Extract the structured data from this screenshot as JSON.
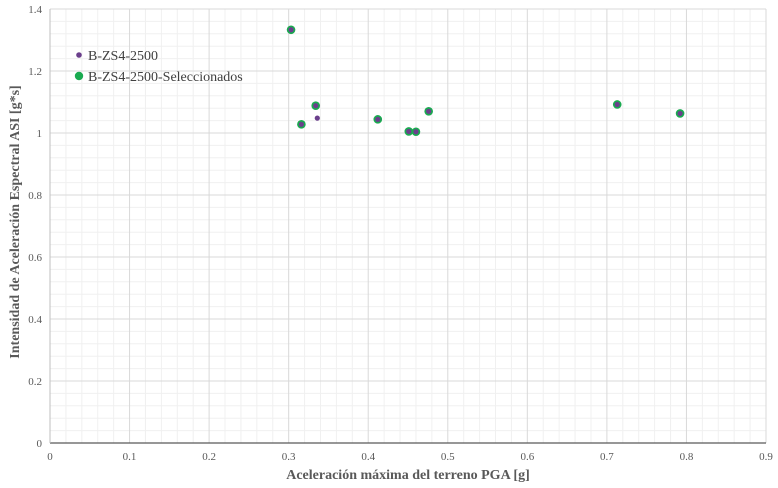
{
  "chart_data": {
    "type": "scatter",
    "title": "",
    "xlabel": "Aceleración máxima del terreno PGA [g]",
    "ylabel": "Intensidad de Aceleración Espectral ASI [g*s]",
    "xlim": [
      0,
      0.9
    ],
    "ylim": [
      0,
      1.4
    ],
    "xticks": [
      "0",
      "0.1",
      "0.2",
      "0.3",
      "0.4",
      "0.5",
      "0.6",
      "0.7",
      "0.8",
      "0.9"
    ],
    "yticks": [
      "0",
      "0.2",
      "0.4",
      "0.6",
      "0.8",
      "1",
      "1.2",
      "1.4"
    ],
    "xtick_values": [
      0,
      0.1,
      0.2,
      0.3,
      0.4,
      0.5,
      0.6,
      0.7,
      0.8,
      0.9
    ],
    "ytick_values": [
      0,
      0.2,
      0.4,
      0.6,
      0.8,
      1.0,
      1.2,
      1.4
    ],
    "grid": true,
    "legend_position": "top-left",
    "series": [
      {
        "name": "B-ZS4-2500",
        "color": "#6b3f8c",
        "marker": "small-dot",
        "points": [
          [
            0.303,
            1.333
          ],
          [
            0.316,
            1.028
          ],
          [
            0.334,
            1.088
          ],
          [
            0.336,
            1.048
          ],
          [
            0.412,
            1.044
          ],
          [
            0.451,
            1.005
          ],
          [
            0.46,
            1.004
          ],
          [
            0.476,
            1.07
          ],
          [
            0.713,
            1.092
          ],
          [
            0.792,
            1.063
          ]
        ]
      },
      {
        "name": "B-ZS4-2500-Seleccionados",
        "color": "#1aaa50",
        "marker": "large-dot",
        "points": [
          [
            0.303,
            1.333
          ],
          [
            0.316,
            1.028
          ],
          [
            0.334,
            1.088
          ],
          [
            0.412,
            1.044
          ],
          [
            0.451,
            1.005
          ],
          [
            0.46,
            1.004
          ],
          [
            0.476,
            1.07
          ],
          [
            0.713,
            1.092
          ],
          [
            0.792,
            1.063
          ]
        ]
      }
    ]
  }
}
